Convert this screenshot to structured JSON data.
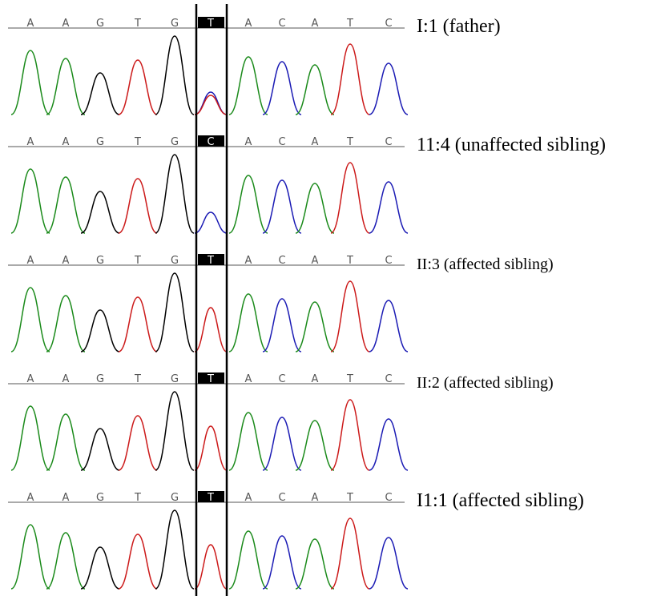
{
  "panels": [
    {
      "label": "I:1 (father)",
      "sequence": [
        "A",
        "A",
        "G",
        "T",
        "G",
        "T",
        "A",
        "C",
        "A",
        "T",
        "C"
      ]
    },
    {
      "label": "11:4 (unaffected sibling)",
      "sequence": [
        "A",
        "A",
        "G",
        "T",
        "G",
        "C",
        "A",
        "C",
        "A",
        "T",
        "C"
      ]
    },
    {
      "label": "II:3 (affected sibling)",
      "sequence": [
        "A",
        "A",
        "G",
        "T",
        "G",
        "T",
        "A",
        "C",
        "A",
        "T",
        "C"
      ]
    },
    {
      "label": "II:2 (affected sibling)",
      "sequence": [
        "A",
        "A",
        "G",
        "T",
        "G",
        "T",
        "A",
        "C",
        "A",
        "T",
        "C"
      ]
    },
    {
      "label": "I1:1 (affected sibling)",
      "sequence": [
        "A",
        "A",
        "G",
        "T",
        "G",
        "T",
        "A",
        "C",
        "A",
        "T",
        "C"
      ]
    }
  ]
}
